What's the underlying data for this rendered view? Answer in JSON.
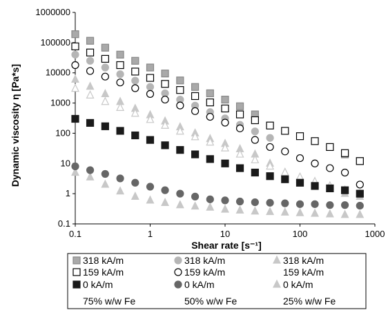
{
  "chart_data": {
    "type": "scatter",
    "x_scale": "log",
    "y_scale": "log",
    "xlabel": "Shear rate [s⁻¹]",
    "ylabel": "Dynamic viscosity η [Pa*s]",
    "xlim": [
      0.1,
      1000
    ],
    "ylim": [
      0.1,
      1000000
    ],
    "x_ticks": [
      "0.1",
      "1",
      "10",
      "100",
      "1000"
    ],
    "y_ticks": [
      "0.1",
      "1",
      "10",
      "100",
      "1000",
      "10000",
      "100000",
      "1000000"
    ],
    "grid": false,
    "legend_position": "bottom",
    "x": [
      0.1,
      0.158,
      0.251,
      0.398,
      0.631,
      1,
      1.58,
      2.51,
      3.98,
      6.31,
      10,
      15.8,
      25.1,
      39.8,
      63.1,
      100,
      158,
      251,
      398,
      631
    ],
    "series": [
      {
        "name": "318 kA/m",
        "group": "75% w/w Fe",
        "marker": "square-filled-light",
        "color": "#a9a9a9",
        "values": [
          190000,
          115000,
          68000,
          40000,
          25000,
          15000,
          9500,
          5600,
          3400,
          2100,
          1300,
          780,
          420,
          null,
          null,
          null,
          null,
          null,
          20,
          12
        ]
      },
      {
        "name": "159 kA/m",
        "group": "75% w/w Fe",
        "marker": "square-open",
        "color": "#000000",
        "values": [
          75000,
          47000,
          29000,
          18000,
          11000,
          6800,
          4300,
          2700,
          1700,
          1050,
          660,
          420,
          270,
          180,
          120,
          80,
          55,
          35,
          22,
          12
        ]
      },
      {
        "name": "0 kA/m",
        "group": "75% w/w Fe",
        "marker": "square-filled-dark",
        "color": "#1a1a1a",
        "values": [
          300,
          220,
          170,
          120,
          85,
          60,
          40,
          28,
          20,
          14,
          10,
          7,
          5,
          3.8,
          3,
          2.3,
          1.8,
          1.5,
          1.3,
          1
        ]
      },
      {
        "name": "318 kA/m",
        "group": "50% w/w Fe",
        "marker": "circle-filled-light",
        "color": "#b5b5b5",
        "values": [
          40000,
          25000,
          15000,
          9000,
          5500,
          3400,
          2100,
          1300,
          820,
          500,
          310,
          190,
          115,
          70,
          null,
          null,
          null,
          null,
          null,
          null
        ]
      },
      {
        "name": "159 kA/m",
        "group": "50% w/w Fe",
        "marker": "circle-open",
        "color": "#000000",
        "values": [
          18000,
          11500,
          7500,
          4800,
          3100,
          2000,
          1300,
          830,
          540,
          350,
          225,
          145,
          60,
          35,
          25,
          15,
          10,
          7,
          5,
          2
        ]
      },
      {
        "name": "0 kA/m",
        "group": "50% w/w Fe",
        "marker": "circle-filled-dark",
        "color": "#666666",
        "values": [
          8,
          6,
          4.5,
          3.2,
          2.3,
          1.7,
          1.3,
          1,
          0.8,
          0.65,
          0.6,
          0.55,
          0.52,
          0.5,
          0.48,
          0.45,
          0.45,
          0.42,
          0.42,
          0.4
        ]
      },
      {
        "name": "318 kA/m",
        "group": "25% w/w Fe",
        "marker": "triangle-filled-light",
        "color": "#c8c8c8",
        "values": [
          6000,
          3500,
          2000,
          1100,
          650,
          400,
          250,
          160,
          100,
          65,
          45,
          30,
          20,
          10,
          5,
          3,
          2,
          1.5,
          1,
          0.8
        ]
      },
      {
        "name": "159 kA/m",
        "group": "25% w/w Fe",
        "marker": "triangle-open",
        "color": "#c8c8c8",
        "values": [
          3000,
          1800,
          1100,
          700,
          450,
          280,
          180,
          115,
          75,
          50,
          32,
          20,
          13,
          8,
          5,
          3.5,
          2.5,
          1.8,
          1.3,
          1
        ]
      },
      {
        "name": "0 kA/m",
        "group": "25% w/w Fe",
        "marker": "triangle-filled-light",
        "color": "#c8c8c8",
        "values": [
          5,
          3.5,
          2,
          1.2,
          0.8,
          0.6,
          0.5,
          0.42,
          0.38,
          0.35,
          0.3,
          0.28,
          0.26,
          0.25,
          0.24,
          0.23,
          0.22,
          0.21,
          0.2,
          0.2
        ]
      }
    ],
    "legend": {
      "rows": [
        [
          "318 kA/m",
          "318 kA/m",
          "318 kA/m"
        ],
        [
          "159 kA/m",
          "159 kA/m",
          "159 kA/m"
        ],
        [
          "0 kA/m",
          "0 kA/m",
          "0 kA/m"
        ]
      ],
      "groups": [
        "75% w/w Fe",
        "50% w/w Fe",
        "25% w/w Fe"
      ]
    }
  }
}
